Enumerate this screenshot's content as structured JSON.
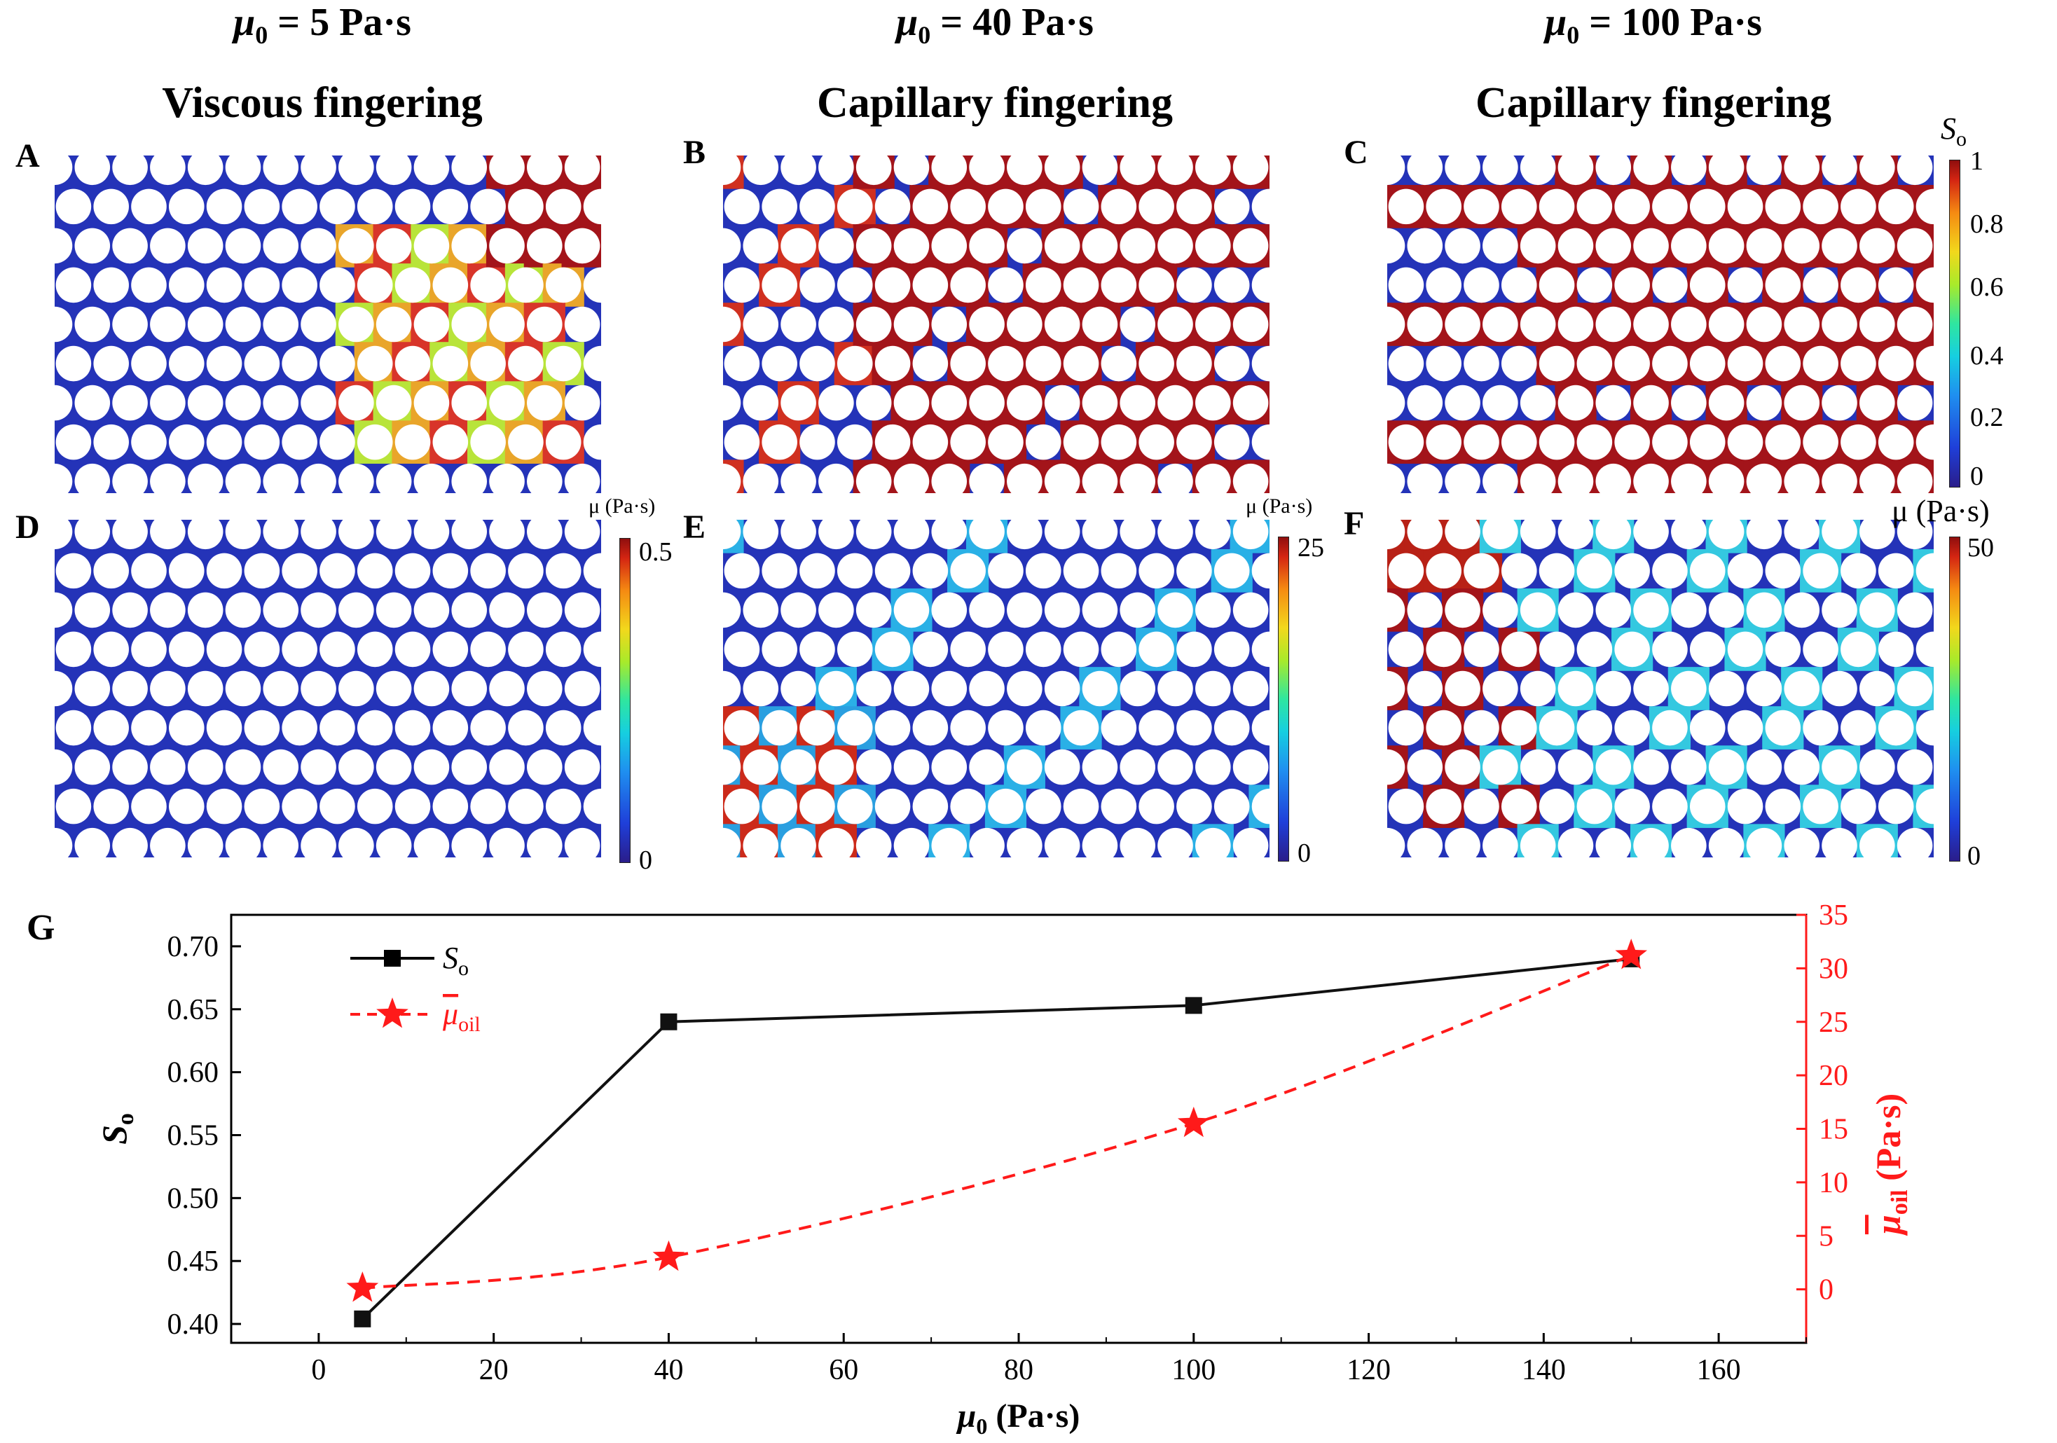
{
  "columns": [
    {
      "header_sym": "μ",
      "header_sub": "0",
      "header_rest": " = 5 Pa·s",
      "regime": "Viscous fingering"
    },
    {
      "header_sym": "μ",
      "header_sub": "0",
      "header_rest": " = 40 Pa·s",
      "regime": "Capillary fingering"
    },
    {
      "header_sym": "μ",
      "header_sub": "0",
      "header_rest": " = 100 Pa·s",
      "regime": "Capillary fingering"
    }
  ],
  "panel_letters": [
    "A",
    "B",
    "C",
    "D",
    "E",
    "F",
    "G"
  ],
  "colorbar_saturation": {
    "title": "S",
    "title_sub": "o",
    "ticks": [
      "1",
      "0.8",
      "0.6",
      "0.4",
      "0.2",
      "0"
    ]
  },
  "colorbar_viscosity": [
    {
      "title": "μ (Pa·s)",
      "max": "0.5",
      "min": "0"
    },
    {
      "title": "μ (Pa·s)",
      "max": "25",
      "min": "0"
    },
    {
      "title": "μ (Pa·s)",
      "max": "50",
      "min": "0"
    }
  ],
  "colors": {
    "pore_blue": "#2433b8",
    "oil_red": "#a3141a",
    "series_black": "#111111",
    "series_red": "#ff1a1a"
  },
  "chart_data": {
    "type": "line",
    "x": [
      5,
      40,
      100,
      150
    ],
    "xlabel": "μ0 (Pa·s)",
    "xlim": [
      -10,
      170
    ],
    "xticks": [
      0,
      20,
      40,
      60,
      80,
      100,
      120,
      140,
      160
    ],
    "ylabel": "So",
    "ylim": [
      0.385,
      0.725
    ],
    "yticks": [
      0.4,
      0.45,
      0.5,
      0.55,
      0.6,
      0.65,
      0.7
    ],
    "y2label": "μoil (Pa·s)",
    "y2lim": [
      -5,
      35
    ],
    "y2ticks": [
      0,
      5,
      10,
      15,
      20,
      25,
      30,
      35
    ],
    "series": [
      {
        "name": "So",
        "axis": "left",
        "style": "solid square",
        "values": [
          0.404,
          0.64,
          0.653,
          0.69
        ]
      },
      {
        "name": "μoil",
        "axis": "right",
        "style": "dashed star",
        "values": [
          0.1,
          3.0,
          15.5,
          31.2
        ]
      }
    ],
    "legend_position": "top-left",
    "grid": false
  }
}
